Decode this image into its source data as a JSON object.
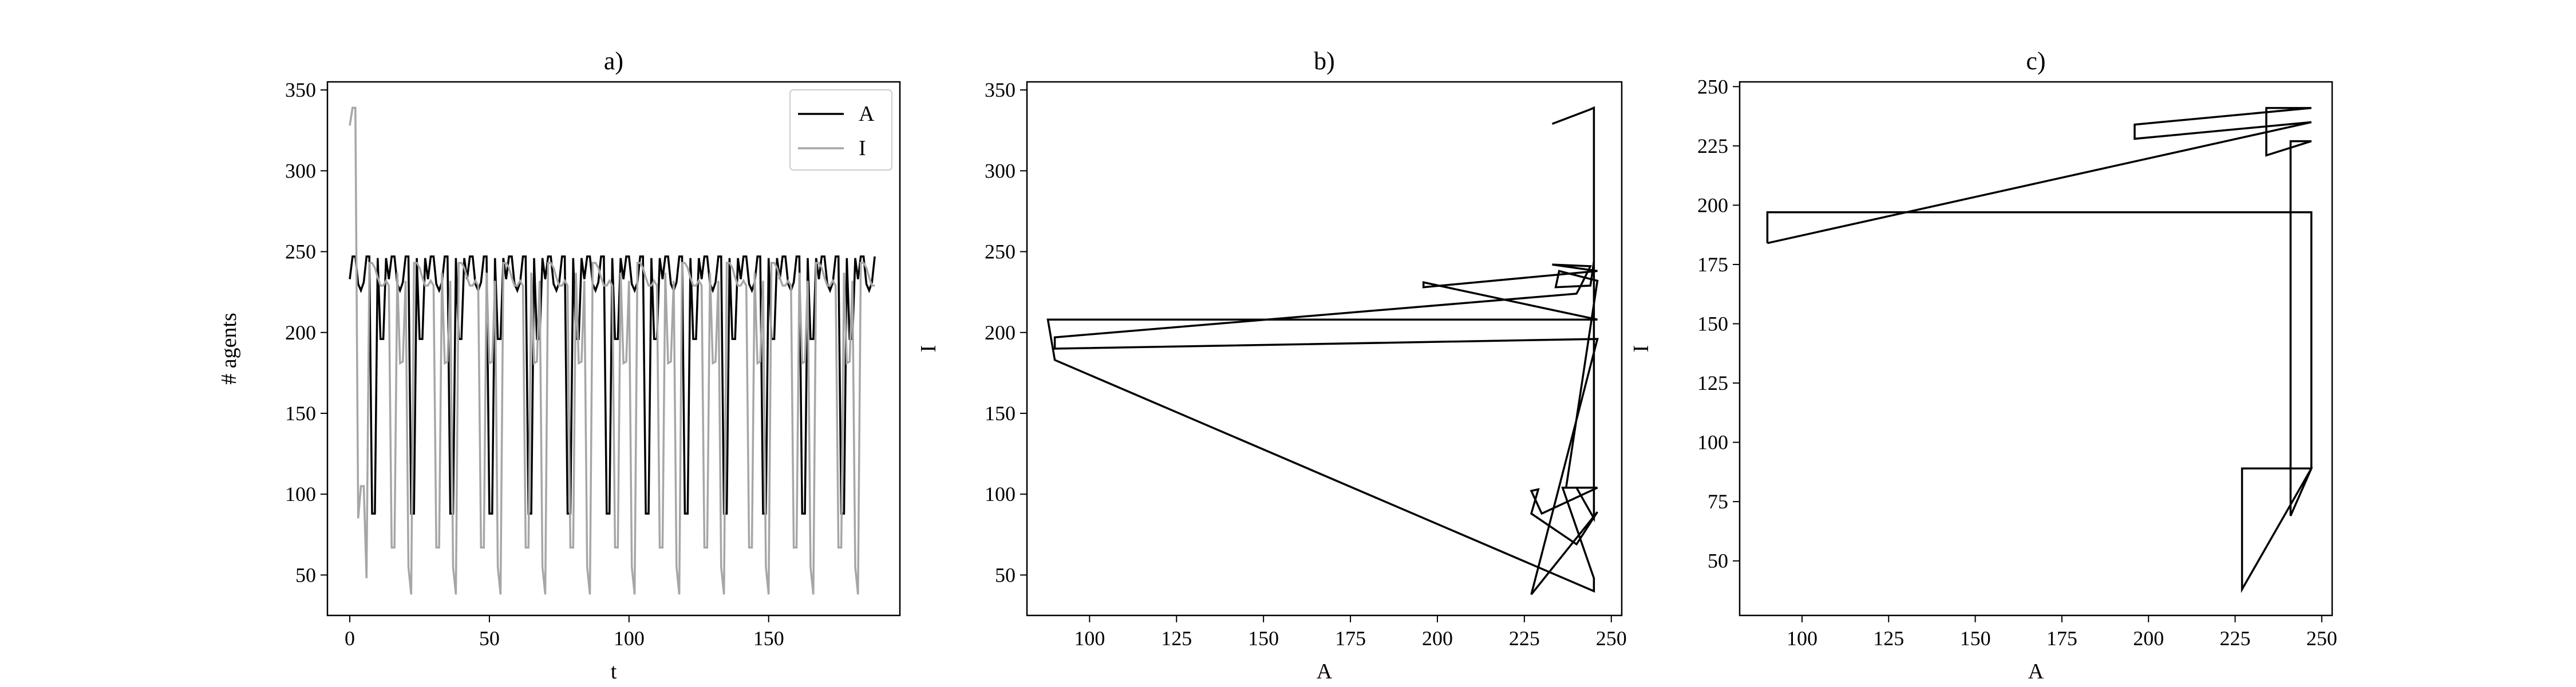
{
  "chart_data": [
    {
      "type": "line",
      "title": "a)",
      "xlabel": "t",
      "ylabel": "# agents",
      "xlim": [
        -8,
        197
      ],
      "ylim": [
        25,
        355
      ],
      "xticks": [
        0,
        50,
        100,
        150
      ],
      "yticks": [
        50,
        100,
        150,
        200,
        250,
        300,
        350
      ],
      "legend": "top-right",
      "cycle_period": 14,
      "n_points": 189,
      "series": [
        {
          "name": "A",
          "color": "#000000",
          "cycle": [
            233,
            247,
            247,
            230,
            226,
            231,
            247,
            247,
            88,
            88,
            246,
            196,
            196,
            246
          ]
        },
        {
          "name": "I",
          "color": "#a6a6a6",
          "initial": [
            328,
            339,
            339,
            85,
            105,
            105,
            48
          ],
          "cycle": [
            243,
            243,
            240,
            234,
            229,
            229,
            232,
            229,
            67,
            67,
            237,
            181,
            182,
            232,
            55,
            38
          ]
        }
      ]
    },
    {
      "type": "line",
      "title": "b)",
      "xlabel": "A",
      "ylabel": "I",
      "xlim": [
        82,
        253
      ],
      "ylim": [
        25,
        355
      ],
      "xticks": [
        100,
        125,
        150,
        175,
        200,
        225,
        250
      ],
      "yticks": [
        50,
        100,
        150,
        200,
        250,
        300,
        350
      ],
      "series": [
        {
          "name": "",
          "color": "#000000",
          "x": [
            233,
            244,
            245,
            245,
            240,
            236,
            245,
            245,
            90,
            88,
            246,
            196,
            196,
            246,
            233,
            244,
            241,
            240,
            90,
            90,
            246,
            227,
            246,
            240,
            227,
            229,
            227,
            230,
            246,
            237,
            246,
            235,
            234,
            244,
            245
          ],
          "y": [
            329,
            338,
            339,
            85,
            104,
            104,
            48,
            40,
            183,
            208,
            208,
            231,
            228,
            238,
            242,
            241,
            228,
            224,
            197,
            190,
            196,
            38,
            89,
            69,
            88,
            103,
            102,
            88,
            104,
            104,
            232,
            238,
            228,
            229,
            244
          ]
        }
      ]
    },
    {
      "type": "line",
      "title": "c)",
      "xlabel": "A",
      "ylabel": "I",
      "xlim": [
        82,
        253
      ],
      "ylim": [
        27,
        252
      ],
      "xticks": [
        100,
        125,
        150,
        175,
        200,
        225,
        250
      ],
      "yticks": [
        50,
        75,
        100,
        125,
        150,
        175,
        200,
        225,
        250
      ],
      "series": [
        {
          "name": "",
          "color": "#000000",
          "x": [
            90,
            90,
            247,
            247,
            247,
            227,
            227,
            247,
            241,
            241,
            247,
            234,
            234,
            247,
            196,
            196,
            247,
            90
          ],
          "y": [
            184,
            197,
            197,
            197,
            89,
            38,
            89,
            89,
            69,
            227,
            227,
            221,
            241,
            241,
            234,
            228,
            235,
            184
          ]
        }
      ]
    }
  ]
}
